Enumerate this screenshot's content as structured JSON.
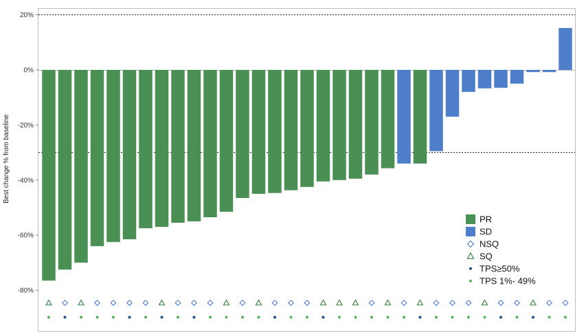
{
  "chart_data": {
    "type": "bar",
    "title": "",
    "xlabel": "",
    "ylabel": "Best change % from baseline",
    "ylim": [
      -90,
      22
    ],
    "yticks": [
      20,
      0,
      -20,
      -40,
      -60,
      -80
    ],
    "ytick_labels": [
      "20%",
      "0%",
      "-20%",
      "-40%",
      "-60%",
      "-80%"
    ],
    "reference_lines": [
      20,
      -30
    ],
    "grid": false,
    "colors": {
      "PR": "#4a8f54",
      "SD": "#4e7ec9",
      "NSQ": "#3f6fc0",
      "SQ": "#2f7a3a",
      "high": "#1f4f8f",
      "low": "#58b45a"
    },
    "values": [
      -76.5,
      -72.5,
      -70,
      -64,
      -62.5,
      -61.5,
      -57.5,
      -57,
      -55.5,
      -55,
      -53.5,
      -51.5,
      -46.5,
      -45,
      -44.7,
      -43.7,
      -42.5,
      -40.5,
      -40,
      -39.5,
      -38,
      -35.7,
      -34,
      -34,
      -29.5,
      -17,
      -8,
      -6.7,
      -6.5,
      -5,
      -0.8,
      -0.8,
      15.2
    ],
    "response": [
      "PR",
      "PR",
      "PR",
      "PR",
      "PR",
      "PR",
      "PR",
      "PR",
      "PR",
      "PR",
      "PR",
      "PR",
      "PR",
      "PR",
      "PR",
      "PR",
      "PR",
      "PR",
      "PR",
      "PR",
      "PR",
      "PR",
      "SD",
      "PR",
      "SD",
      "SD",
      "SD",
      "SD",
      "SD",
      "SD",
      "SD",
      "SD",
      "SD"
    ],
    "histology": [
      "SQ",
      "NSQ",
      "SQ",
      "NSQ",
      "NSQ",
      "NSQ",
      "NSQ",
      "SQ",
      "NSQ",
      "NSQ",
      "NSQ",
      "SQ",
      "NSQ",
      "SQ",
      "NSQ",
      "NSQ",
      "NSQ",
      "SQ",
      "SQ",
      "SQ",
      "NSQ",
      "SQ",
      "NSQ",
      "SQ",
      "NSQ",
      "NSQ",
      "NSQ",
      "SQ",
      "NSQ",
      "NSQ",
      "SQ",
      "NSQ",
      "NSQ"
    ],
    "tps": [
      "low",
      "high",
      "low",
      "low",
      "low",
      "high",
      "low",
      "high",
      "low",
      "high",
      "low",
      "low",
      "low",
      "low",
      "high",
      "low",
      "low",
      "high",
      "low",
      "low",
      "low",
      "low",
      "low",
      "high",
      "low",
      "low",
      "low",
      "low",
      "high",
      "low",
      "high",
      "low",
      "low"
    ],
    "legend": [
      {
        "label": "PR",
        "key": "PR",
        "shape": "square"
      },
      {
        "label": "SD",
        "key": "SD",
        "shape": "square"
      },
      {
        "label": "NSQ",
        "key": "NSQ",
        "shape": "diamond"
      },
      {
        "label": "SQ",
        "key": "SQ",
        "shape": "triangle"
      },
      {
        "label": "TPS≥50%",
        "key": "high",
        "shape": "dot"
      },
      {
        "label": "TPS 1%- 49%",
        "key": "low",
        "shape": "dot"
      }
    ],
    "legend_position": "bottom-right"
  }
}
